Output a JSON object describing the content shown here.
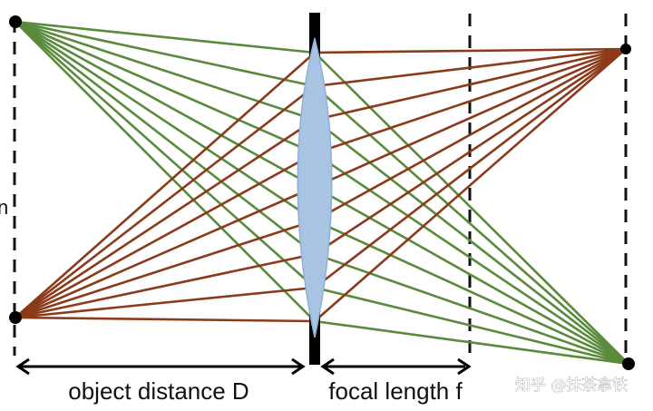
{
  "diagram": {
    "labels": {
      "object_distance": "object distance D",
      "focal_length": "focal length f",
      "left_fragment": "n"
    },
    "watermark": "知乎 @抹茶拿铁",
    "colors": {
      "green_ray": "#5a8a3c",
      "brown_ray": "#8b3a1a",
      "lens_fill": "#a8c4e2",
      "lens_stroke": "#8fb0d6",
      "aperture": "#000000",
      "dashed": "#111111"
    },
    "ray_bundles": [
      {
        "name": "top-object-green",
        "color": "green"
      },
      {
        "name": "bottom-object-brown",
        "color": "brown"
      }
    ]
  }
}
